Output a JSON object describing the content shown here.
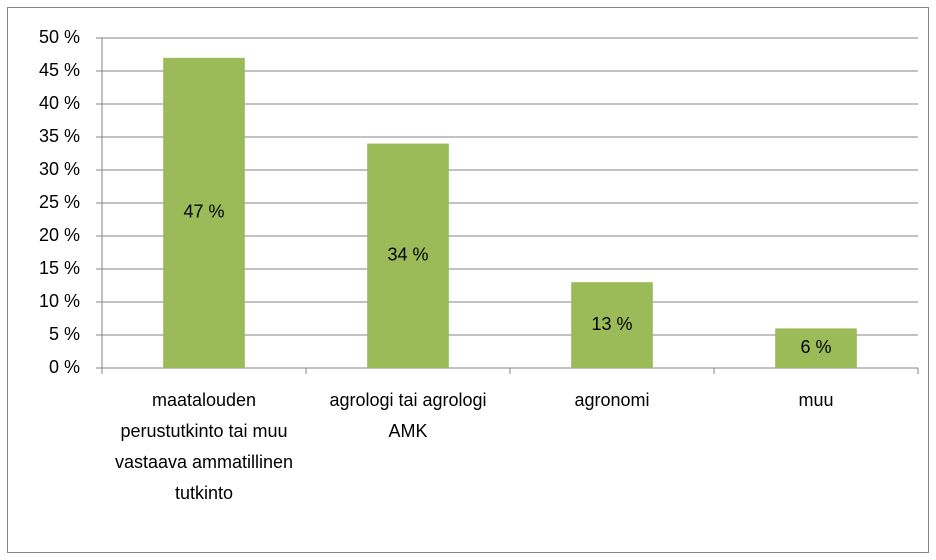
{
  "chart_data": {
    "type": "bar",
    "categories": [
      "maatalouden perustutkinto tai muu vastaava ammatillinen tutkinto",
      "agrologi tai agrologi AMK",
      "agronomi",
      "muu"
    ],
    "values": [
      47,
      34,
      13,
      6
    ],
    "value_labels": [
      "47 %",
      "34 %",
      "13 %",
      "6 %"
    ],
    "color": "#9bbb59",
    "ylim": [
      0,
      50
    ],
    "yticks": [
      {
        "value": 0,
        "label": "0 %"
      },
      {
        "value": 5,
        "label": "5 %"
      },
      {
        "value": 10,
        "label": "10 %"
      },
      {
        "value": 15,
        "label": "15 %"
      },
      {
        "value": 20,
        "label": "20 %"
      },
      {
        "value": 25,
        "label": "25 %"
      },
      {
        "value": 30,
        "label": "30 %"
      },
      {
        "value": 35,
        "label": "35 %"
      },
      {
        "value": 40,
        "label": "40 %"
      },
      {
        "value": 45,
        "label": "45 %"
      },
      {
        "value": 50,
        "label": "50 %"
      }
    ],
    "grid": true
  }
}
